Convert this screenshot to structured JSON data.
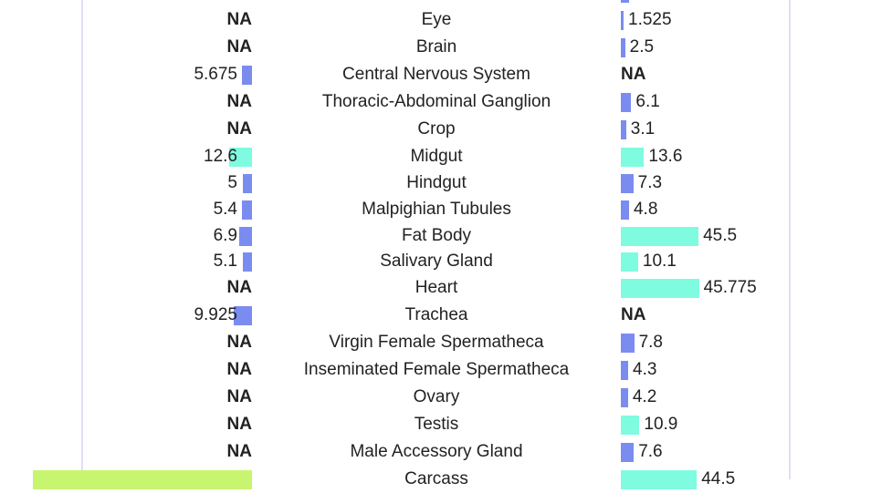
{
  "colors": {
    "low": "#7b8cf0",
    "high": "#7ffbe0",
    "top": "#c8f56f"
  },
  "rows": [
    {
      "tissue": "Eye",
      "left": "NA",
      "right": "1.525"
    },
    {
      "tissue": "Brain",
      "left": "NA",
      "right": "2.5"
    },
    {
      "tissue": "Central Nervous System",
      "left": "5.675",
      "right": "NA"
    },
    {
      "tissue": "Thoracic-Abdominal Ganglion",
      "left": "NA",
      "right": "6.1"
    },
    {
      "tissue": "Crop",
      "left": "NA",
      "right": "3.1"
    },
    {
      "tissue": "Midgut",
      "left": "12.6",
      "right": "13.6"
    },
    {
      "tissue": "Hindgut",
      "left": "5",
      "right": "7.3"
    },
    {
      "tissue": "Malpighian Tubules",
      "left": "5.4",
      "right": "4.8"
    },
    {
      "tissue": "Fat Body",
      "left": "6.9",
      "right": "45.5"
    },
    {
      "tissue": "Salivary Gland",
      "left": "5.1",
      "right": "10.1"
    },
    {
      "tissue": "Heart",
      "left": "NA",
      "right": "45.775"
    },
    {
      "tissue": "Trachea",
      "left": "9.925",
      "right": "NA"
    },
    {
      "tissue": "Virgin Female Spermatheca",
      "left": "NA",
      "right": "7.8"
    },
    {
      "tissue": "Inseminated Female Spermatheca",
      "left": "NA",
      "right": "4.3"
    },
    {
      "tissue": "Ovary",
      "left": "NA",
      "right": "4.2"
    },
    {
      "tissue": "Testis",
      "left": "NA",
      "right": "10.9"
    },
    {
      "tissue": "Male Accessory Gland",
      "left": "NA",
      "right": "7.6"
    },
    {
      "tissue": "Carcass",
      "left": "",
      "right": "44.5"
    }
  ],
  "chart_data": {
    "type": "bar",
    "categories": [
      "Eye",
      "Brain",
      "Central Nervous System",
      "Thoracic-Abdominal Ganglion",
      "Crop",
      "Midgut",
      "Hindgut",
      "Malpighian Tubules",
      "Fat Body",
      "Salivary Gland",
      "Heart",
      "Trachea",
      "Virgin Female Spermatheca",
      "Inseminated Female Spermatheca",
      "Ovary",
      "Testis",
      "Male Accessory Gland",
      "Carcass"
    ],
    "series": [
      {
        "values": [
          null,
          null,
          5.675,
          null,
          null,
          12.6,
          5,
          5.4,
          6.9,
          5.1,
          null,
          9.925,
          null,
          null,
          null,
          null,
          null,
          120
        ]
      },
      {
        "values": [
          1.525,
          2.5,
          null,
          6.1,
          3.1,
          13.6,
          7.3,
          4.8,
          45.5,
          10.1,
          45.775,
          null,
          7.8,
          4.3,
          4.2,
          10.9,
          7.6,
          44.5
        ]
      }
    ]
  }
}
